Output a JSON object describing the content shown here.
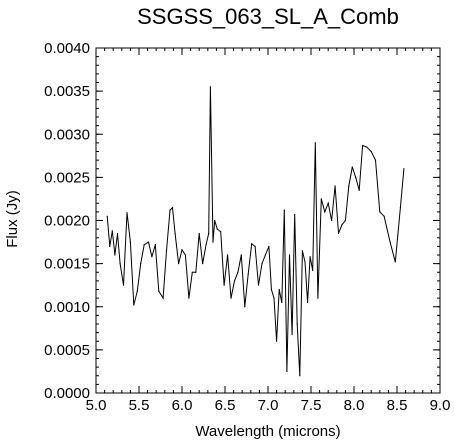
{
  "chart_data": {
    "type": "line",
    "title": "SSGSS_063_SL_A_Comb",
    "xlabel": "Wavelength (microns)",
    "ylabel": "Flux (Jy)",
    "xlim": [
      5.0,
      9.0
    ],
    "ylim": [
      0.0,
      0.004
    ],
    "xticks": [
      "5.0",
      "5.5",
      "6.0",
      "6.5",
      "7.0",
      "7.5",
      "8.0",
      "8.5",
      "9.0"
    ],
    "yticks": [
      "0.0000",
      "0.0005",
      "0.0010",
      "0.0015",
      "0.0020",
      "0.0025",
      "0.0030",
      "0.0035",
      "0.0040"
    ],
    "grid": false,
    "line_color": "#000000",
    "series": [
      {
        "x": [
          5.13,
          5.16,
          5.19,
          5.22,
          5.25,
          5.28,
          5.32,
          5.36,
          5.4,
          5.44,
          5.48,
          5.52,
          5.56,
          5.61,
          5.65,
          5.69,
          5.73,
          5.78,
          5.82,
          5.86,
          5.89,
          5.92,
          5.96,
          6.0,
          6.04,
          6.08,
          6.12,
          6.16,
          6.2,
          6.24,
          6.28,
          6.31,
          6.33,
          6.36,
          6.38,
          6.41,
          6.45,
          6.49,
          6.53,
          6.57,
          6.61,
          6.65,
          6.69,
          6.73,
          6.77,
          6.81,
          6.85,
          6.89,
          6.93,
          6.97,
          7.01,
          7.04,
          7.07,
          7.1,
          7.13,
          7.16,
          7.19,
          7.22,
          7.25,
          7.28,
          7.31,
          7.34,
          7.37,
          7.4,
          7.43,
          7.46,
          7.49,
          7.52,
          7.55,
          7.58,
          7.62,
          7.66,
          7.7,
          7.74,
          7.78,
          7.82,
          7.86,
          7.9,
          7.94,
          7.98,
          8.02,
          8.06,
          8.1,
          8.15,
          8.2,
          8.25,
          8.3,
          8.35,
          8.42,
          8.48,
          8.54,
          8.58
        ],
        "y": [
          0.00205,
          0.0017,
          0.00188,
          0.0016,
          0.00185,
          0.0015,
          0.00125,
          0.00209,
          0.00175,
          0.00102,
          0.00118,
          0.0015,
          0.00172,
          0.00175,
          0.00158,
          0.00172,
          0.00118,
          0.0011,
          0.00165,
          0.00212,
          0.00215,
          0.00185,
          0.0015,
          0.00166,
          0.0016,
          0.0011,
          0.0014,
          0.0014,
          0.00185,
          0.0015,
          0.00172,
          0.00185,
          0.00355,
          0.00175,
          0.002,
          0.0019,
          0.00187,
          0.00125,
          0.0016,
          0.0011,
          0.0013,
          0.0014,
          0.0016,
          0.001,
          0.00138,
          0.00173,
          0.0017,
          0.00125,
          0.0015,
          0.0016,
          0.0017,
          0.0012,
          0.0011,
          0.0006,
          0.0012,
          0.00105,
          0.00212,
          0.00025,
          0.0016,
          0.00068,
          0.00207,
          0.0008,
          0.0002,
          0.00165,
          0.00152,
          0.00105,
          0.00158,
          0.00142,
          0.0029,
          0.0011,
          0.00225,
          0.0021,
          0.0022,
          0.002,
          0.0024,
          0.00185,
          0.00195,
          0.002,
          0.0024,
          0.00262,
          0.0025,
          0.00235,
          0.00287,
          0.00285,
          0.0028,
          0.0027,
          0.0021,
          0.00205,
          0.00175,
          0.00152,
          0.00215,
          0.0026
        ]
      }
    ]
  }
}
